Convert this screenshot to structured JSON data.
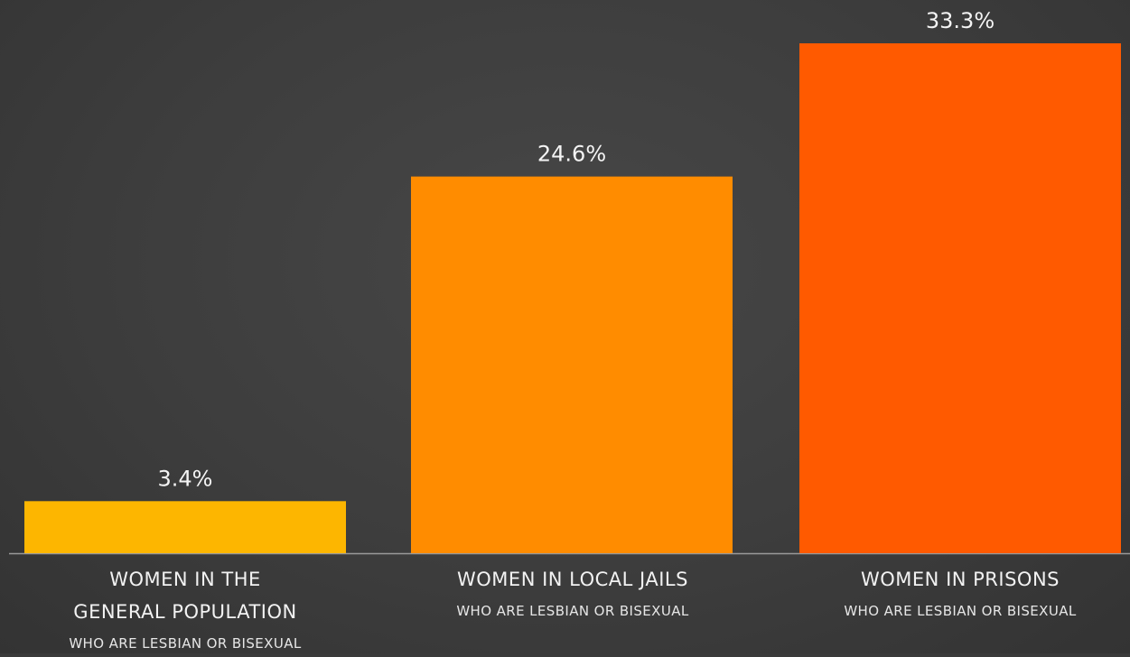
{
  "chart_data": {
    "type": "bar",
    "categories": [
      "WOMEN IN THE GENERAL POPULATION",
      "WOMEN IN LOCAL JAILS",
      "WOMEN IN PRISONS"
    ],
    "subtitles": [
      "WHO ARE LESBIAN OR BISEXUAL",
      "WHO ARE LESBIAN OR BISEXUAL",
      "WHO ARE LESBIAN OR BISEXUAL"
    ],
    "values": [
      3.4,
      24.6,
      33.3
    ],
    "value_labels": [
      "3.4%",
      "24.6%",
      "33.3%"
    ],
    "colors": [
      "#fdb600",
      "#ff8c00",
      "#ff5a00"
    ],
    "ylim": [
      0,
      33.3
    ],
    "grid": false,
    "legend": "none"
  },
  "categories_display": [
    {
      "title_line1": "WOMEN IN THE",
      "title_line2": "GENERAL POPULATION",
      "sub": "WHO ARE LESBIAN OR BISEXUAL"
    },
    {
      "title_line1": "WOMEN IN LOCAL JAILS",
      "title_line2": "",
      "sub": "WHO ARE LESBIAN OR BISEXUAL"
    },
    {
      "title_line1": "WOMEN IN PRISONS",
      "title_line2": "",
      "sub": "WHO ARE LESBIAN OR BISEXUAL"
    }
  ],
  "theme": {
    "background": "#3d3d3d",
    "baseline": "#9a9a9a",
    "text": "#f4f4f4"
  }
}
